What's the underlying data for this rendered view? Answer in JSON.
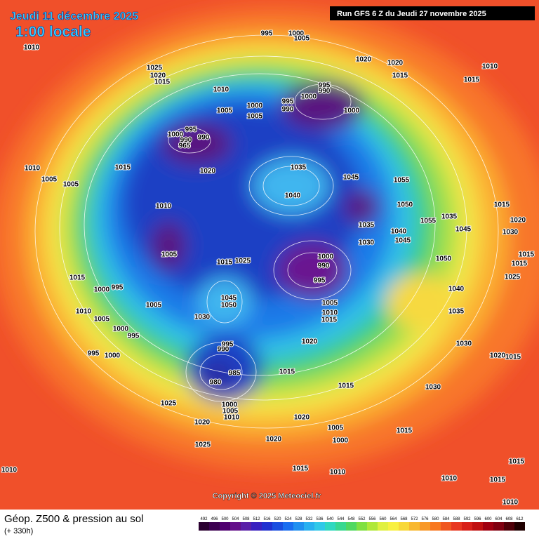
{
  "header": {
    "title": "Jeudi 11 décembre 2025",
    "subtitle": "1:00 locale",
    "run": "Run GFS 6 Z du Jeudi 27 novembre 2025"
  },
  "footer": {
    "title": "Géop. Z500 & pression au sol",
    "lead": "(+ 330h)",
    "copyright": "Copyright © 2025 Meteociel.fr"
  },
  "legend": {
    "levels": [
      492,
      496,
      500,
      504,
      508,
      512,
      516,
      520,
      524,
      528,
      532,
      536,
      540,
      544,
      548,
      552,
      556,
      560,
      564,
      568,
      572,
      576,
      580,
      584,
      588,
      592,
      596,
      600,
      604,
      608,
      612
    ]
  },
  "pressure_labels": [
    1010,
    995,
    1000,
    1005,
    1020,
    1020,
    1010,
    1015,
    1015,
    1025,
    1020,
    1015,
    1010,
    995,
    990,
    1005,
    1000,
    995,
    990,
    1000,
    1000,
    1005,
    995,
    1000,
    990,
    990,
    965,
    1010,
    1015,
    1020,
    1035,
    1045,
    1055,
    1005,
    1005,
    1040,
    1050,
    1010,
    1015,
    1035,
    1055,
    1035,
    1045,
    1020,
    1040,
    1030,
    1045,
    1030,
    1005,
    1000,
    990,
    995,
    1015,
    1025,
    1050,
    1015,
    1015,
    1015,
    1000,
    995,
    1040,
    1025,
    1005,
    1045,
    1050,
    1005,
    1010,
    1015,
    1035,
    1010,
    1005,
    1030,
    1000,
    995,
    1020,
    1030,
    995,
    990,
    995,
    1000,
    985,
    980,
    1015,
    1020,
    1015,
    1015,
    1030,
    1025,
    1000,
    1005,
    1010,
    1020,
    1020,
    1005,
    1015,
    1000,
    1020,
    1025,
    1010,
    1015,
    1010,
    1010,
    1015,
    1015,
    1010
  ]
}
